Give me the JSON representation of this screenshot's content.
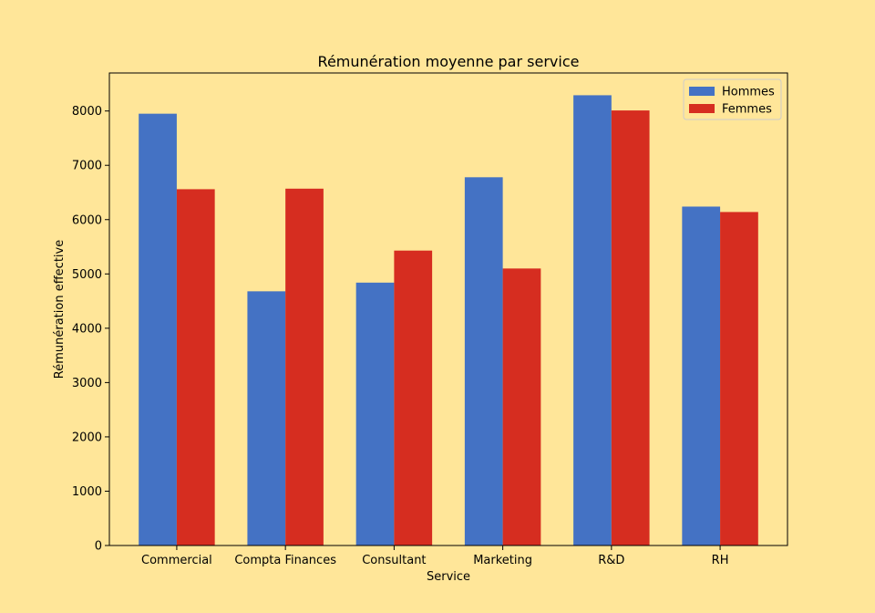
{
  "chart_data": {
    "type": "bar",
    "title": "Rémunération moyenne par service",
    "xlabel": "Service",
    "ylabel": "Rémunération effective",
    "categories": [
      "Commercial",
      "Compta Finances",
      "Consultant",
      "Marketing",
      "R&D",
      "RH"
    ],
    "series": [
      {
        "name": "Hommes",
        "color": "#4472C4",
        "values": [
          7950,
          4680,
          4840,
          6780,
          8290,
          6240
        ]
      },
      {
        "name": "Femmes",
        "color": "#D62D20",
        "values": [
          6560,
          6570,
          5430,
          5100,
          8010,
          6140
        ]
      }
    ],
    "ylim": [
      0,
      8700
    ],
    "yticks": [
      0,
      1000,
      2000,
      3000,
      4000,
      5000,
      6000,
      7000,
      8000
    ],
    "grid": false,
    "legend_position": "top-right",
    "background": "#FFE699"
  }
}
